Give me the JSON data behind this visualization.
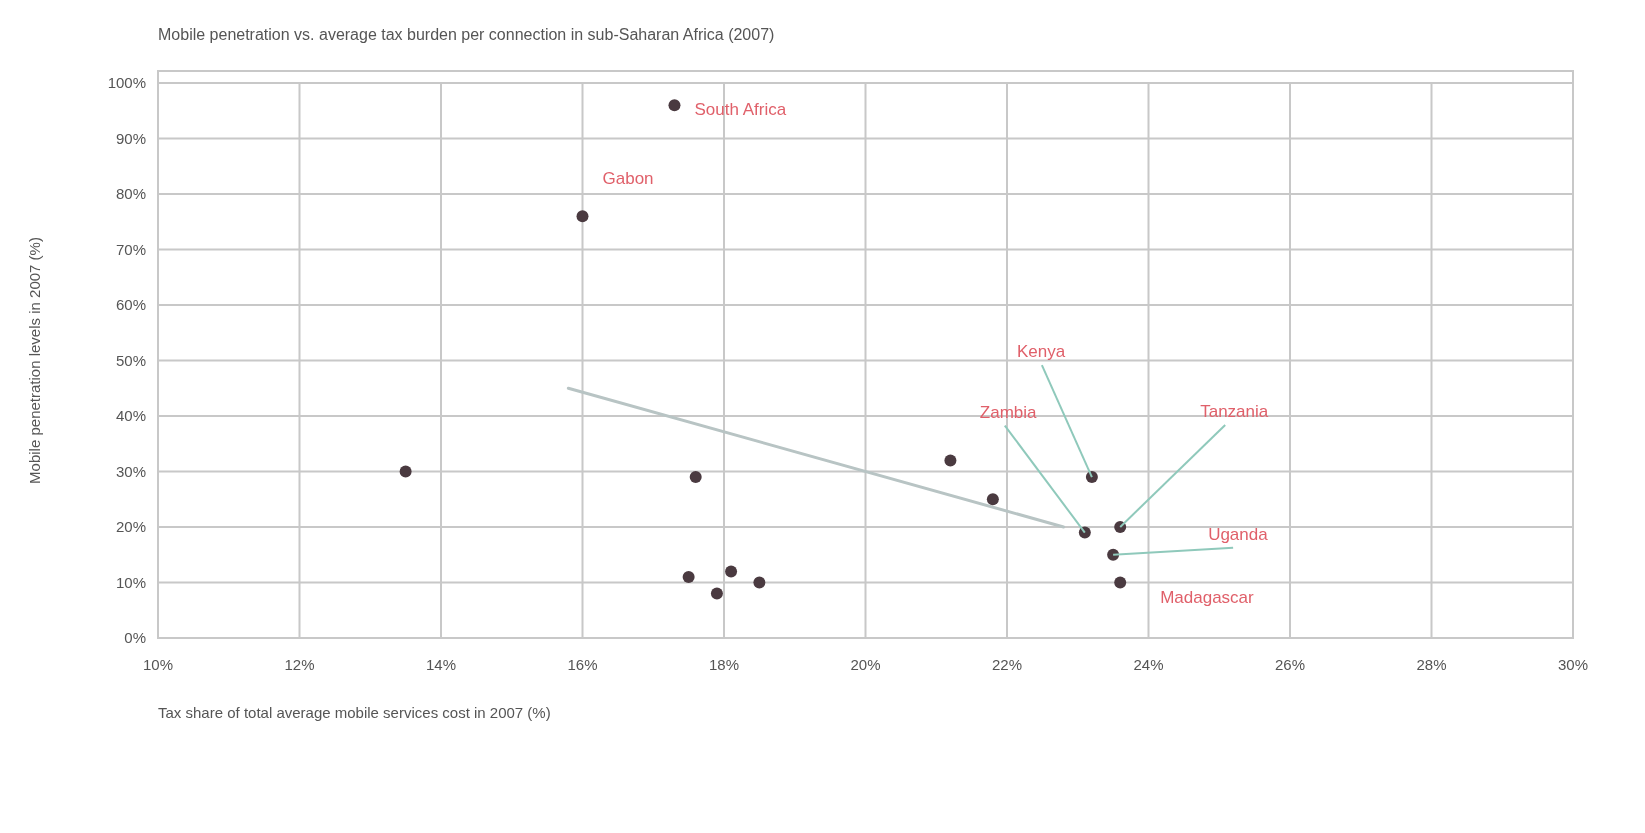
{
  "chart_data": {
    "type": "scatter",
    "title": "Mobile penetration vs. average tax burden per connection in sub-Saharan Africa (2007)",
    "xlabel": "Tax share of total average mobile services cost in 2007 (%)",
    "ylabel": "Mobile penetration levels in 2007 (%)",
    "xlim": [
      10,
      30
    ],
    "xticks": [
      {
        "value": 10,
        "label": "10%"
      },
      {
        "value": 12,
        "label": "12%"
      },
      {
        "value": 14,
        "label": "14%"
      },
      {
        "value": 16,
        "label": "16%"
      },
      {
        "value": 18,
        "label": "18%"
      },
      {
        "value": 20,
        "label": "20%"
      },
      {
        "value": 22,
        "label": "22%"
      },
      {
        "value": 24,
        "label": "24%"
      },
      {
        "value": 26,
        "label": "26%"
      },
      {
        "value": 28,
        "label": "28%"
      },
      {
        "value": 30,
        "label": "30%"
      }
    ],
    "ylim": [
      0,
      100
    ],
    "yticks": [
      {
        "value": 0,
        "label": "0%"
      },
      {
        "value": 10,
        "label": "10%"
      },
      {
        "value": 20,
        "label": "20%"
      },
      {
        "value": 30,
        "label": "30%"
      },
      {
        "value": 40,
        "label": "40%"
      },
      {
        "value": 50,
        "label": "50%"
      },
      {
        "value": 60,
        "label": "60%"
      },
      {
        "value": 70,
        "label": "70%"
      },
      {
        "value": 80,
        "label": "80%"
      },
      {
        "value": 90,
        "label": "90%"
      },
      {
        "value": 100,
        "label": "100%"
      }
    ],
    "grid": true,
    "series": [
      {
        "marker": "circle",
        "color": "#4a3a40",
        "x": [
          17.3,
          16.0,
          13.5,
          17.6,
          17.5,
          17.9,
          18.1,
          18.5,
          21.2,
          21.8,
          23.2,
          23.1,
          23.6,
          23.5,
          23.6
        ],
        "values": [
          96,
          76,
          30,
          29,
          11,
          8,
          12,
          10,
          32,
          25,
          29,
          19,
          20,
          15,
          10
        ]
      },
      {
        "type": "line",
        "marker": "none",
        "color": "#b8c4c4",
        "x": [
          15.8,
          22.8
        ],
        "values": [
          45,
          20
        ]
      }
    ],
    "annotations": [
      {
        "text": "South Africa",
        "x": 17.3,
        "y": 96
      },
      {
        "text": "Gabon",
        "x": 16.0,
        "y": 76
      },
      {
        "text": "Kenya",
        "x": 23.2,
        "y": 29
      },
      {
        "text": "Zambia",
        "x": 23.1,
        "y": 19
      },
      {
        "text": "Tanzania",
        "x": 23.6,
        "y": 20
      },
      {
        "text": "Uganda",
        "x": 23.5,
        "y": 15
      },
      {
        "text": "Madagascar",
        "x": 23.6,
        "y": 10
      }
    ]
  }
}
